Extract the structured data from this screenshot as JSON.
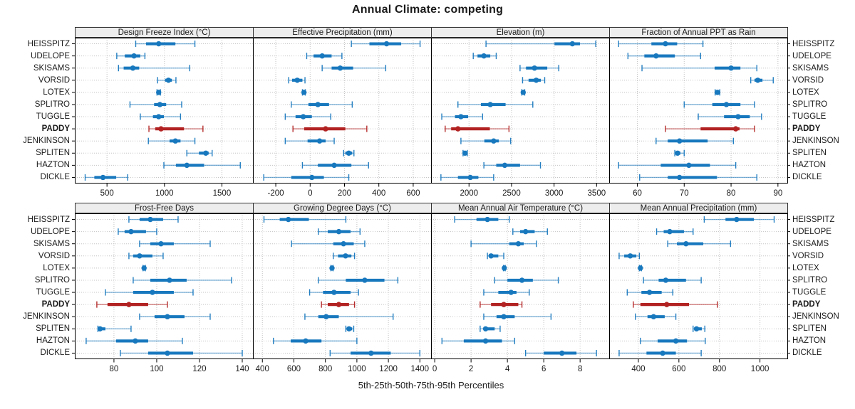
{
  "title": "Annual Climate: competing",
  "xlabel": "5th-25th-50th-75th-95th Percentiles",
  "colors": {
    "series": "#1878be",
    "highlight": "#b22222",
    "grid": "#c4c4c4",
    "strip_bg": "#ededed",
    "panel_border": "#000000",
    "text": "#1a1a1a"
  },
  "chart_data": {
    "type": "dotplot-trellis",
    "layout": [
      2,
      4
    ],
    "percentiles": [
      5,
      25,
      50,
      75,
      95
    ],
    "legend_note": "dot = median, thick bar = 25th-75th, whisker = 5th-95th",
    "sites": [
      "HEISSPITZ",
      "UDELOPE",
      "SKISAMS",
      "VORSID",
      "LOTEX",
      "SPLITRO",
      "TUGGLE",
      "PADDY",
      "JENKINSON",
      "SPLITEN",
      "HAZTON",
      "DICKLE"
    ],
    "highlight_site": "PADDY",
    "panels": [
      {
        "title": "Design Freeze Index (°C)",
        "xlim": [
          220,
          1770
        ],
        "ticks": [
          500,
          1000,
          1500
        ],
        "values": {
          "HEISSPITZ": [
            750,
            840,
            950,
            1095,
            1265
          ],
          "UDELOPE": [
            585,
            655,
            735,
            790,
            830
          ],
          "SKISAMS": [
            600,
            645,
            725,
            780,
            1220
          ],
          "VORSID": [
            940,
            1005,
            1035,
            1065,
            1100
          ],
          "LOTEX": [
            935,
            945,
            950,
            955,
            965
          ],
          "SPLITRO": [
            700,
            910,
            960,
            1015,
            1150
          ],
          "TUGGLE": [
            790,
            900,
            950,
            995,
            1140
          ],
          "PADDY": [
            865,
            920,
            970,
            1170,
            1335
          ],
          "JENKINSON": [
            860,
            1045,
            1095,
            1140,
            1265
          ],
          "SPLITEN": [
            1195,
            1300,
            1360,
            1385,
            1415
          ],
          "HAZTON": [
            995,
            1100,
            1195,
            1345,
            1660
          ],
          "DICKLE": [
            310,
            390,
            465,
            580,
            680
          ]
        }
      },
      {
        "title": "Effective Precipitation (mm)",
        "xlim": [
          -333,
          704
        ],
        "ticks": [
          -200,
          0,
          200,
          400,
          600
        ],
        "values": {
          "HEISSPITZ": [
            240,
            345,
            445,
            530,
            640
          ],
          "UDELOPE": [
            -20,
            20,
            70,
            125,
            185
          ],
          "SKISAMS": [
            70,
            125,
            175,
            250,
            440
          ],
          "VORSID": [
            -125,
            -105,
            -75,
            -45,
            -30
          ],
          "LOTEX": [
            -45,
            -40,
            -36,
            -32,
            -28
          ],
          "SPLITRO": [
            -110,
            -10,
            45,
            110,
            245
          ],
          "TUGGLE": [
            -145,
            -85,
            -40,
            10,
            120
          ],
          "PADDY": [
            -100,
            -35,
            90,
            205,
            330
          ],
          "JENKINSON": [
            -145,
            -15,
            55,
            90,
            140
          ],
          "SPLITEN": [
            195,
            205,
            225,
            245,
            255
          ],
          "HAZTON": [
            -45,
            45,
            140,
            240,
            340
          ],
          "DICKLE": [
            -270,
            -110,
            10,
            80,
            225
          ]
        }
      },
      {
        "title": "Elevation (m)",
        "xlim": [
          1554,
          3648
        ],
        "ticks": [
          2000,
          2500,
          3000,
          3500
        ],
        "values": {
          "HEISSPITZ": [
            2200,
            3005,
            3215,
            3305,
            3490
          ],
          "UDELOPE": [
            2050,
            2100,
            2175,
            2250,
            2320
          ],
          "SKISAMS": [
            2600,
            2670,
            2770,
            2920,
            3055
          ],
          "VORSID": [
            2630,
            2700,
            2790,
            2845,
            2890
          ],
          "LOTEX": [
            2620,
            2630,
            2637,
            2645,
            2655
          ],
          "SPLITRO": [
            1870,
            2140,
            2250,
            2430,
            2750
          ],
          "TUGGLE": [
            1680,
            1835,
            1905,
            1990,
            2160
          ],
          "PADDY": [
            1720,
            1790,
            1870,
            2245,
            2470
          ],
          "JENKINSON": [
            1905,
            2180,
            2290,
            2350,
            2490
          ],
          "SPLITEN": [
            1930,
            1940,
            1953,
            1965,
            1980
          ],
          "HAZTON": [
            2175,
            2320,
            2420,
            2600,
            2840
          ],
          "DICKLE": [
            1670,
            1870,
            2015,
            2110,
            2290
          ]
        }
      },
      {
        "title": "Fraction of Annual PPT as Rain",
        "xlim": [
          54,
          92
        ],
        "ticks": [
          60,
          70,
          80,
          90
        ],
        "values": {
          "HEISSPITZ": [
            56,
            63,
            66,
            68.5,
            74
          ],
          "UDELOPE": [
            58,
            61.5,
            64,
            68,
            73.5
          ],
          "SKISAMS": [
            61,
            76.5,
            80,
            82,
            85.5
          ],
          "VORSID": [
            84.2,
            85,
            85.7,
            86.7,
            89
          ],
          "LOTEX": [
            76.6,
            76.9,
            77.1,
            77.3,
            77.6
          ],
          "SPLITRO": [
            70,
            76,
            79,
            82,
            85
          ],
          "TUGGLE": [
            73,
            78.5,
            81.5,
            84,
            86.5
          ],
          "PADDY": [
            66,
            73.5,
            81,
            81.8,
            85
          ],
          "JENKINSON": [
            64,
            66.5,
            69,
            75,
            80.5
          ],
          "SPLITEN": [
            68,
            68.3,
            68.6,
            69.2,
            70
          ],
          "HAZTON": [
            56,
            65,
            71,
            75.5,
            81
          ],
          "DICKLE": [
            60.5,
            66.5,
            69,
            77,
            85.5
          ]
        }
      },
      {
        "title": "Frost-Free Days",
        "xlim": [
          61.7,
          145
        ],
        "ticks": [
          80,
          100,
          120,
          140
        ],
        "values": {
          "HEISSPITZ": [
            87,
            92,
            97,
            103,
            110
          ],
          "UDELOPE": [
            82,
            85,
            88,
            95,
            100
          ],
          "SKISAMS": [
            92,
            97,
            102,
            108,
            125
          ],
          "VORSID": [
            87,
            89,
            92,
            98,
            103
          ],
          "LOTEX": [
            93.6,
            93.9,
            94.1,
            94.4,
            94.7
          ],
          "SPLITRO": [
            89,
            97,
            106,
            114,
            135
          ],
          "TUGGLE": [
            76,
            89,
            98,
            108,
            117
          ],
          "PADDY": [
            72,
            77,
            87,
            96,
            105
          ],
          "JENKINSON": [
            92,
            99,
            105,
            113,
            125
          ],
          "SPLITEN": [
            72.5,
            73,
            73.5,
            76,
            88
          ],
          "HAZTON": [
            67,
            81,
            90,
            96,
            112
          ],
          "DICKLE": [
            83,
            96,
            105,
            117,
            140
          ]
        }
      },
      {
        "title": "Growing Degree Days (°C)",
        "xlim": [
          340,
          1471
        ],
        "ticks": [
          400,
          600,
          800,
          1000,
          1200,
          1400
        ],
        "values": {
          "HEISSPITZ": [
            410,
            510,
            565,
            695,
            930
          ],
          "UDELOPE": [
            755,
            815,
            885,
            960,
            1020
          ],
          "SKISAMS": [
            585,
            850,
            915,
            980,
            1050
          ],
          "VORSID": [
            850,
            880,
            928,
            965,
            985
          ],
          "LOTEX": [
            835,
            839,
            842,
            845,
            849
          ],
          "SPLITRO": [
            755,
            930,
            1050,
            1175,
            1260
          ],
          "TUGGLE": [
            700,
            785,
            855,
            960,
            1010
          ],
          "PADDY": [
            775,
            815,
            885,
            950,
            985
          ],
          "JENKINSON": [
            670,
            755,
            805,
            885,
            1230
          ],
          "SPLITEN": [
            930,
            940,
            950,
            970,
            980
          ],
          "HAZTON": [
            470,
            580,
            675,
            775,
            1000
          ],
          "DICKLE": [
            830,
            960,
            1090,
            1215,
            1400
          ]
        }
      },
      {
        "title": "Mean Annual Air Temperature (°C)",
        "xlim": [
          -0.2,
          9.6
        ],
        "ticks": [
          0,
          2,
          4,
          6,
          8
        ],
        "values": {
          "HEISSPITZ": [
            1.1,
            2.3,
            2.9,
            3.5,
            4.1
          ],
          "UDELOPE": [
            4.3,
            4.7,
            5.0,
            5.5,
            6.2
          ],
          "SKISAMS": [
            2.0,
            4.1,
            4.6,
            4.9,
            5.6
          ],
          "VORSID": [
            2.9,
            3.0,
            3.1,
            3.5,
            3.8
          ],
          "LOTEX": [
            3.78,
            3.81,
            3.83,
            3.85,
            3.88
          ],
          "SPLITRO": [
            3.3,
            4.0,
            4.8,
            5.4,
            6.8
          ],
          "TUGGLE": [
            2.7,
            3.5,
            4.2,
            4.5,
            5.2
          ],
          "PADDY": [
            2.5,
            3.1,
            3.8,
            4.6,
            4.8
          ],
          "JENKINSON": [
            2.7,
            3.4,
            3.8,
            4.4,
            6.4
          ],
          "SPLITEN": [
            2.5,
            2.7,
            2.8,
            3.3,
            3.6
          ],
          "HAZTON": [
            0.4,
            1.6,
            2.8,
            3.7,
            4.4
          ],
          "DICKLE": [
            5.0,
            6.0,
            7.0,
            7.8,
            8.9
          ]
        }
      },
      {
        "title": "Mean Annual Precipitation (mm)",
        "xlim": [
          256,
          1135
        ],
        "ticks": [
          400,
          600,
          800,
          1000
        ],
        "values": {
          "HEISSPITZ": [
            725,
            830,
            885,
            970,
            1070
          ],
          "UDELOPE": [
            490,
            525,
            555,
            625,
            670
          ],
          "SKISAMS": [
            545,
            590,
            635,
            720,
            855
          ],
          "VORSID": [
            305,
            330,
            360,
            390,
            405
          ],
          "LOTEX": [
            405,
            408,
            410,
            412,
            415
          ],
          "SPLITRO": [
            425,
            500,
            535,
            635,
            710
          ],
          "TUGGLE": [
            345,
            415,
            455,
            515,
            570
          ],
          "PADDY": [
            375,
            410,
            540,
            650,
            790
          ],
          "JENKINSON": [
            385,
            445,
            475,
            530,
            585
          ],
          "SPLITEN": [
            670,
            675,
            687,
            713,
            728
          ],
          "HAZTON": [
            410,
            495,
            585,
            640,
            730
          ],
          "DICKLE": [
            305,
            440,
            520,
            585,
            710
          ]
        }
      }
    ]
  }
}
